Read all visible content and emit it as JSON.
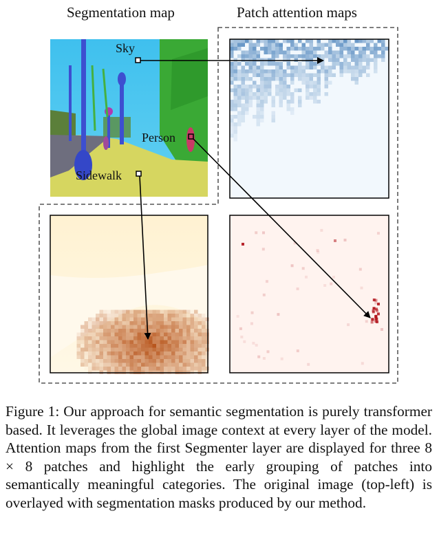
{
  "headers": {
    "segmentation": "Segmentation map",
    "attention": "Patch attention maps"
  },
  "labels": {
    "sky": "Sky",
    "person": "Person",
    "sidewalk": "Sidewalk"
  },
  "caption": {
    "text": "Figure 1: Our approach for semantic segmentation is purely transformer based. It leverages the global image context at every layer of the model. Attention maps from the first Segmenter layer are displayed for three 8 × 8 patches and highlight the early grouping of patches into semantically meaningful categories. The original image (top-left) is overlayed with segmentation masks produced by our method."
  },
  "colors": {
    "sky": "#4cc4f0",
    "road": "#6e6e7e",
    "sidewalk": "#d8d862",
    "vegetation": "#3fae3a",
    "pole": "#3d4fd0",
    "person": "#c83a66",
    "blue_map": "#2f6fb0",
    "orange_map": "#b04408",
    "red_map": "#b01018"
  }
}
